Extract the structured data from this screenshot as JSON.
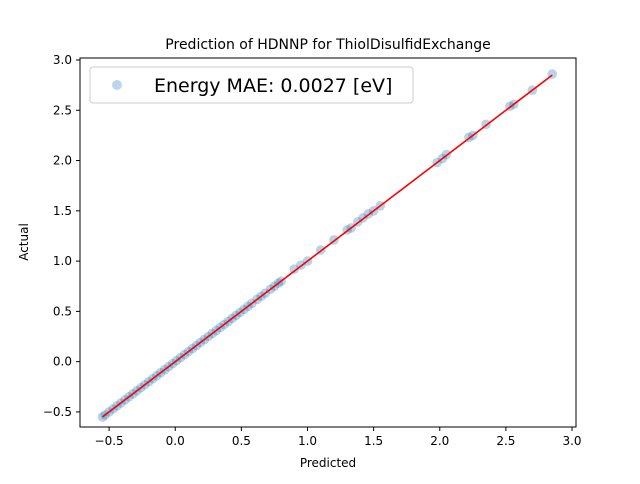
{
  "chart_data": {
    "type": "scatter",
    "title": "Prediction of HDNNP for ThiolDisulfidExchange",
    "xlabel": "Predicted",
    "ylabel": "Actual",
    "xlim": [
      -0.72,
      3.03
    ],
    "ylim": [
      -0.65,
      3.02
    ],
    "xticks": [
      -0.5,
      0.0,
      0.5,
      1.0,
      1.5,
      2.0,
      2.5,
      3.0
    ],
    "xtick_labels": [
      "−0.5",
      "0.0",
      "0.5",
      "1.0",
      "1.5",
      "2.0",
      "2.5",
      "3.0"
    ],
    "yticks": [
      -0.5,
      0.0,
      0.5,
      1.0,
      1.5,
      2.0,
      2.5,
      3.0
    ],
    "ytick_labels": [
      "−0.5",
      "0.0",
      "0.5",
      "1.0",
      "1.5",
      "2.0",
      "2.5",
      "3.0"
    ],
    "grid": false,
    "legend": {
      "placement": "top-left",
      "entries": [
        "Energy MAE: 0.0027 [eV]"
      ]
    },
    "colors": {
      "points": "#1f77b4",
      "fit_line": "#ff0000"
    },
    "fit_line": {
      "x": [
        -0.55,
        2.85
      ],
      "y": [
        -0.55,
        2.85
      ]
    },
    "series": [
      {
        "name": "Energy MAE: 0.0027 [eV]",
        "points": [
          [
            -0.55,
            -0.55
          ],
          [
            -0.53,
            -0.53
          ],
          [
            -0.5,
            -0.5
          ],
          [
            -0.47,
            -0.47
          ],
          [
            -0.44,
            -0.44
          ],
          [
            -0.41,
            -0.41
          ],
          [
            -0.38,
            -0.38
          ],
          [
            -0.35,
            -0.35
          ],
          [
            -0.32,
            -0.32
          ],
          [
            -0.29,
            -0.29
          ],
          [
            -0.26,
            -0.26
          ],
          [
            -0.23,
            -0.23
          ],
          [
            -0.2,
            -0.2
          ],
          [
            -0.17,
            -0.17
          ],
          [
            -0.14,
            -0.14
          ],
          [
            -0.11,
            -0.11
          ],
          [
            -0.08,
            -0.08
          ],
          [
            -0.05,
            -0.05
          ],
          [
            -0.02,
            -0.02
          ],
          [
            0.01,
            0.01
          ],
          [
            0.04,
            0.04
          ],
          [
            0.07,
            0.07
          ],
          [
            0.1,
            0.1
          ],
          [
            0.13,
            0.13
          ],
          [
            0.16,
            0.16
          ],
          [
            0.19,
            0.19
          ],
          [
            0.22,
            0.22
          ],
          [
            0.25,
            0.25
          ],
          [
            0.28,
            0.28
          ],
          [
            0.31,
            0.31
          ],
          [
            0.34,
            0.34
          ],
          [
            0.37,
            0.37
          ],
          [
            0.4,
            0.4
          ],
          [
            0.43,
            0.43
          ],
          [
            0.46,
            0.46
          ],
          [
            0.49,
            0.49
          ],
          [
            0.52,
            0.52
          ],
          [
            0.55,
            0.55
          ],
          [
            0.58,
            0.58
          ],
          [
            0.62,
            0.62
          ],
          [
            0.65,
            0.65
          ],
          [
            0.68,
            0.68
          ],
          [
            0.72,
            0.72
          ],
          [
            0.75,
            0.75
          ],
          [
            0.78,
            0.78
          ],
          [
            0.8,
            0.8
          ],
          [
            0.9,
            0.92
          ],
          [
            0.95,
            0.96
          ],
          [
            1.0,
            1.0
          ],
          [
            1.1,
            1.11
          ],
          [
            1.2,
            1.21
          ],
          [
            1.3,
            1.31
          ],
          [
            1.33,
            1.33
          ],
          [
            1.38,
            1.39
          ],
          [
            1.42,
            1.43
          ],
          [
            1.46,
            1.47
          ],
          [
            1.5,
            1.5
          ],
          [
            1.55,
            1.55
          ],
          [
            1.98,
            1.98
          ],
          [
            2.02,
            2.02
          ],
          [
            2.05,
            2.06
          ],
          [
            2.22,
            2.23
          ],
          [
            2.25,
            2.25
          ],
          [
            2.35,
            2.36
          ],
          [
            2.53,
            2.54
          ],
          [
            2.56,
            2.56
          ],
          [
            2.7,
            2.7
          ],
          [
            2.85,
            2.86
          ]
        ]
      }
    ]
  }
}
